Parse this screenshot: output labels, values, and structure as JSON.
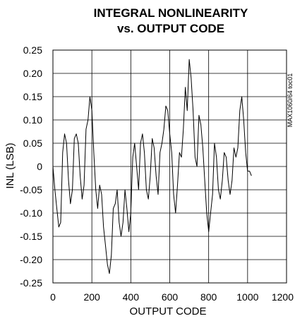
{
  "chart_data": {
    "type": "line",
    "title": "INTEGRAL NONLINEARITY",
    "subtitle": "vs. OUTPUT CODE",
    "xlabel": "OUTPUT CODE",
    "ylabel": "INL (LSB)",
    "side_note": "MAX1060/64 toc01",
    "xlim": [
      0,
      1200
    ],
    "ylim": [
      -0.25,
      0.25
    ],
    "x_ticks": [
      0,
      200,
      400,
      600,
      800,
      1000,
      1200
    ],
    "y_ticks": [
      0.25,
      0.2,
      0.15,
      0.1,
      0.05,
      0,
      -0.05,
      -0.1,
      -0.15,
      -0.2,
      -0.25
    ],
    "x_tick_labels": [
      "0",
      "200",
      "400",
      "600",
      "800",
      "1000",
      "1200"
    ],
    "y_tick_labels": [
      "0.25",
      "0.20",
      "0.15",
      "0.10",
      "0.05",
      "0",
      "-0.05",
      "-0.10",
      "-0.15",
      "-0.20",
      "-0.25"
    ],
    "grid": true,
    "line_color": "#000000",
    "series": [
      {
        "x": [
          0,
          10,
          20,
          30,
          40,
          50,
          60,
          70,
          80,
          90,
          100,
          110,
          120,
          130,
          140,
          150,
          160,
          170,
          180,
          190,
          200,
          210,
          220,
          230,
          240,
          250,
          260,
          270,
          280,
          290,
          300,
          310,
          320,
          330,
          340,
          350,
          360,
          370,
          380,
          390,
          400,
          410,
          420,
          430,
          440,
          450,
          460,
          470,
          480,
          490,
          500,
          510,
          520,
          530,
          540,
          550,
          560,
          570,
          580,
          590,
          600,
          610,
          620,
          630,
          640,
          650,
          660,
          670,
          680,
          690,
          700,
          710,
          720,
          730,
          740,
          750,
          760,
          770,
          780,
          790,
          800,
          810,
          820,
          830,
          840,
          850,
          860,
          870,
          880,
          890,
          900,
          910,
          920,
          930,
          940,
          950,
          960,
          970,
          980,
          990,
          1000,
          1010,
          1020
        ],
        "values": [
          0.0,
          -0.05,
          -0.09,
          -0.13,
          -0.12,
          0.03,
          0.07,
          0.05,
          -0.03,
          -0.08,
          -0.05,
          0.06,
          0.07,
          0.05,
          -0.02,
          -0.07,
          -0.04,
          0.08,
          0.1,
          0.15,
          0.12,
          0.03,
          -0.05,
          -0.09,
          -0.04,
          -0.06,
          -0.13,
          -0.17,
          -0.21,
          -0.23,
          -0.19,
          -0.09,
          -0.08,
          -0.05,
          -0.12,
          -0.15,
          -0.12,
          -0.05,
          -0.09,
          -0.14,
          -0.1,
          0.02,
          0.05,
          0.0,
          -0.05,
          0.05,
          0.07,
          0.03,
          -0.05,
          -0.07,
          -0.02,
          0.06,
          0.04,
          -0.02,
          -0.06,
          0.03,
          0.05,
          0.08,
          0.13,
          0.12,
          0.07,
          0.03,
          -0.06,
          -0.1,
          -0.04,
          0.03,
          0.02,
          0.08,
          0.17,
          0.12,
          0.23,
          0.19,
          0.12,
          0.02,
          0.0,
          0.11,
          0.09,
          0.04,
          -0.03,
          -0.1,
          -0.14,
          -0.1,
          -0.06,
          0.05,
          0.02,
          -0.05,
          -0.07,
          -0.03,
          0.03,
          0.02,
          -0.03,
          -0.06,
          -0.03,
          0.04,
          0.02,
          0.04,
          0.12,
          0.15,
          0.1,
          0.03,
          -0.01,
          -0.01,
          -0.02
        ]
      }
    ]
  }
}
